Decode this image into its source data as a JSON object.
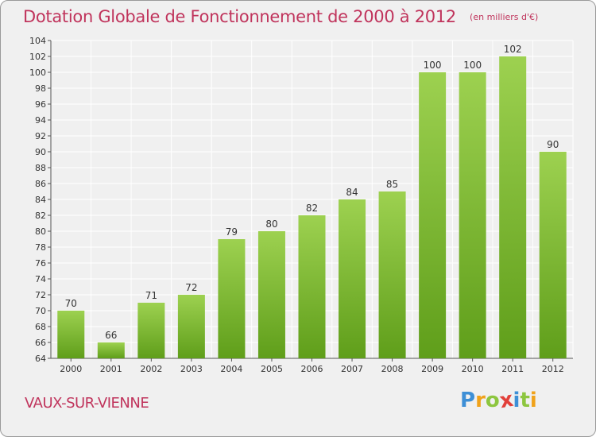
{
  "header": {
    "title": "Dotation Globale de Fonctionnement de 2000 à 2012",
    "subtitle": "(en milliers d'€)"
  },
  "footer": {
    "location": "VAUX-SUR-VIENNE",
    "logo_text": "Proxiti"
  },
  "colors": {
    "title": "#c0345c",
    "bar_light": "#9dd150",
    "bar_dark": "#5f9e1a",
    "background": "#f0f0f0",
    "grid": "#ffffff"
  },
  "chart_data": {
    "type": "bar",
    "title": "Dotation Globale de Fonctionnement de 2000 à 2012",
    "subtitle": "(en milliers d'€)",
    "categories": [
      "2000",
      "2001",
      "2002",
      "2003",
      "2004",
      "2005",
      "2006",
      "2007",
      "2008",
      "2009",
      "2010",
      "2011",
      "2012"
    ],
    "values": [
      70,
      66,
      71,
      72,
      79,
      80,
      82,
      84,
      85,
      100,
      100,
      102,
      90
    ],
    "ylim": [
      64,
      104
    ],
    "yticks": [
      64,
      66,
      68,
      70,
      72,
      74,
      76,
      78,
      80,
      82,
      84,
      86,
      88,
      90,
      92,
      94,
      96,
      98,
      100,
      102,
      104
    ],
    "grid": true,
    "xlabel": "",
    "ylabel": ""
  }
}
